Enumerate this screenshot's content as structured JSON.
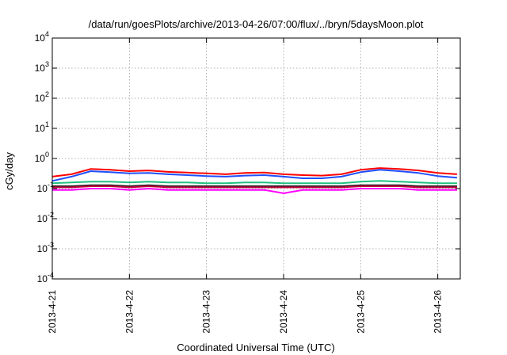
{
  "chart_data": {
    "type": "line",
    "title": "/data/run/goesPlots/archive/2013-04-26/07:00/flux/../bryn/5daysMoon.plot",
    "xlabel": "Coordinated Universal Time (UTC)",
    "ylabel": "cGy/day",
    "yscale": "log",
    "ylim": [
      0.0001,
      10000
    ],
    "xlim": [
      "2013-04-21T00:00",
      "2013-04-26T07:00"
    ],
    "grid": true,
    "legend": "none",
    "y_ticks": [
      {
        "value": 0.0001,
        "base": "10",
        "exp": "-4"
      },
      {
        "value": 0.001,
        "base": "10",
        "exp": "-3"
      },
      {
        "value": 0.01,
        "base": "10",
        "exp": "-2"
      },
      {
        "value": 0.1,
        "base": "10",
        "exp": "-1"
      },
      {
        "value": 1,
        "base": "10",
        "exp": "0"
      },
      {
        "value": 10,
        "base": "10",
        "exp": "1"
      },
      {
        "value": 100,
        "base": "10",
        "exp": "2"
      },
      {
        "value": 1000,
        "base": "10",
        "exp": "3"
      },
      {
        "value": 10000,
        "base": "10",
        "exp": "4"
      }
    ],
    "x_ticks": [
      {
        "value": "2013-04-21T00:00",
        "label": "2013-4-21"
      },
      {
        "value": "2013-04-22T00:00",
        "label": "2013-4-22"
      },
      {
        "value": "2013-04-23T00:00",
        "label": "2013-4-23"
      },
      {
        "value": "2013-04-24T00:00",
        "label": "2013-4-24"
      },
      {
        "value": "2013-04-25T00:00",
        "label": "2013-4-25"
      },
      {
        "value": "2013-04-26T00:00",
        "label": "2013-4-26"
      }
    ],
    "x": [
      "2013-04-21T00:00",
      "2013-04-21T06:00",
      "2013-04-21T12:00",
      "2013-04-21T18:00",
      "2013-04-22T00:00",
      "2013-04-22T06:00",
      "2013-04-22T12:00",
      "2013-04-22T18:00",
      "2013-04-23T00:00",
      "2013-04-23T06:00",
      "2013-04-23T12:00",
      "2013-04-23T18:00",
      "2013-04-24T00:00",
      "2013-04-24T06:00",
      "2013-04-24T12:00",
      "2013-04-24T18:00",
      "2013-04-25T00:00",
      "2013-04-25T06:00",
      "2013-04-25T12:00",
      "2013-04-25T18:00",
      "2013-04-26T00:00",
      "2013-04-26T06:00"
    ],
    "series": [
      {
        "color": "#ff0000",
        "values": [
          0.25,
          0.3,
          0.45,
          0.42,
          0.38,
          0.4,
          0.36,
          0.34,
          0.32,
          0.3,
          0.33,
          0.34,
          0.3,
          0.28,
          0.27,
          0.3,
          0.42,
          0.48,
          0.45,
          0.4,
          0.33,
          0.3
        ]
      },
      {
        "color": "#1f4fff",
        "values": [
          0.18,
          0.25,
          0.38,
          0.35,
          0.32,
          0.33,
          0.3,
          0.28,
          0.26,
          0.25,
          0.27,
          0.28,
          0.25,
          0.22,
          0.22,
          0.25,
          0.35,
          0.42,
          0.38,
          0.33,
          0.26,
          0.23
        ]
      },
      {
        "color": "#20c080",
        "values": [
          0.15,
          0.16,
          0.17,
          0.17,
          0.16,
          0.17,
          0.16,
          0.16,
          0.15,
          0.15,
          0.16,
          0.16,
          0.15,
          0.15,
          0.15,
          0.15,
          0.17,
          0.18,
          0.17,
          0.16,
          0.15,
          0.15
        ]
      },
      {
        "color": "#202020",
        "values": [
          0.12,
          0.12,
          0.13,
          0.13,
          0.12,
          0.13,
          0.12,
          0.12,
          0.12,
          0.12,
          0.12,
          0.12,
          0.12,
          0.12,
          0.12,
          0.12,
          0.13,
          0.13,
          0.13,
          0.12,
          0.12,
          0.12
        ]
      },
      {
        "color": "#c0003a",
        "values": [
          0.11,
          0.11,
          0.12,
          0.12,
          0.11,
          0.12,
          0.11,
          0.11,
          0.11,
          0.11,
          0.11,
          0.11,
          0.11,
          0.11,
          0.11,
          0.11,
          0.12,
          0.12,
          0.12,
          0.11,
          0.11,
          0.11
        ]
      },
      {
        "color": "#ff00ff",
        "values": [
          0.09,
          0.09,
          0.1,
          0.1,
          0.09,
          0.1,
          0.09,
          0.09,
          0.09,
          0.09,
          0.09,
          0.09,
          0.07,
          0.09,
          0.09,
          0.09,
          0.1,
          0.1,
          0.1,
          0.09,
          0.09,
          0.09
        ]
      }
    ]
  }
}
